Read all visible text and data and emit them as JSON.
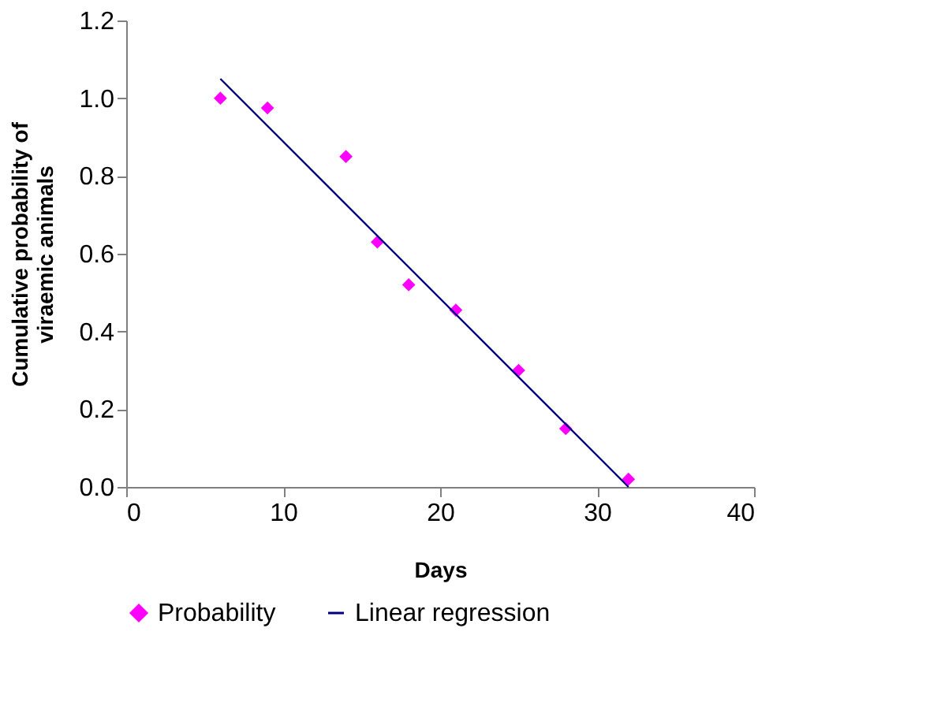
{
  "chart_data": {
    "type": "scatter",
    "xlabel": "Days",
    "ylabel": "Cumulative probability of viraemic animals",
    "series": [
      {
        "name": "Probability",
        "type": "scatter",
        "color": "#ff00ff",
        "marker": "diamond",
        "x": [
          6,
          9,
          14,
          16,
          18,
          21,
          25,
          28,
          32
        ],
        "values": [
          1.0,
          0.975,
          0.85,
          0.63,
          0.52,
          0.455,
          0.3,
          0.15,
          0.02
        ]
      },
      {
        "name": "Linear regression",
        "type": "line",
        "color": "#000080",
        "marker": "none",
        "x": [
          6,
          32
        ],
        "values": [
          1.05,
          0.0
        ]
      }
    ],
    "xlim": [
      0,
      40
    ],
    "xticks": [
      0,
      10,
      20,
      30,
      40
    ],
    "ylim": [
      0,
      1.2
    ],
    "yticks": [
      {
        "value": 0,
        "label": "0.0"
      },
      0.2,
      0.4,
      0.6,
      0.8,
      {
        "value": 1,
        "label": "1.0"
      },
      1.2
    ],
    "grid": false,
    "legend": "bottom"
  }
}
